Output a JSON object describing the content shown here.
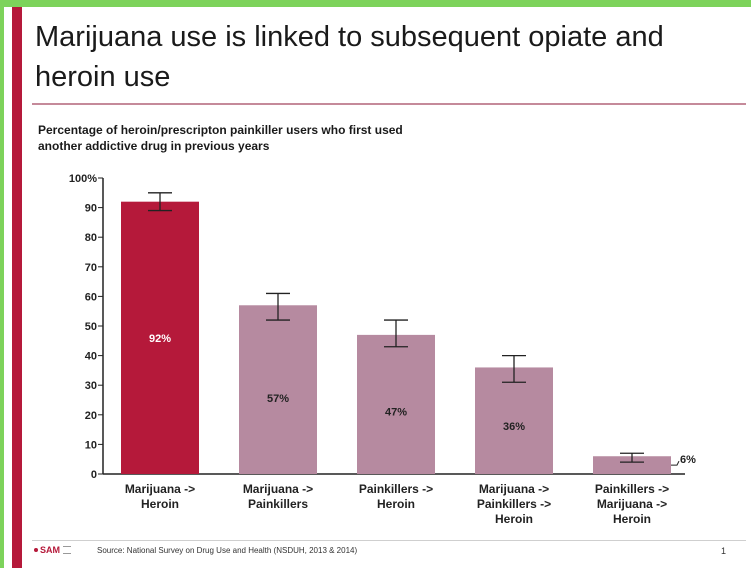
{
  "slide": {
    "title": "Marijuana use is linked to subsequent opiate and heroin use",
    "subtitle": "Percentage of heroin/prescripton painkiller users who first used another addictive drug in previous years",
    "logo_text": "SAM",
    "source": "Source:  National Survey on Drug Use and Health (NSDUH, 2013 & 2014)",
    "page_number": "1"
  },
  "colors": {
    "frame": "#7dd35b",
    "accent": "#b5193a",
    "bar_highlight": "#b5193a",
    "bar_default": "#b68aa0"
  },
  "chart_data": {
    "type": "bar",
    "title": "Percentage of heroin/prescripton painkiller users who first used another addictive drug in previous years",
    "categories": [
      [
        "Marijuana ->",
        "Heroin"
      ],
      [
        "Marijuana ->",
        "Painkillers"
      ],
      [
        "Painkillers ->",
        "Heroin"
      ],
      [
        "Marijuana ->",
        "Painkillers ->",
        "Heroin"
      ],
      [
        "Painkillers ->",
        "Marijuana ->",
        "Heroin"
      ]
    ],
    "values": [
      92,
      57,
      47,
      36,
      6
    ],
    "value_labels": [
      "92%",
      "57%",
      "47%",
      "36%",
      "6%"
    ],
    "error_bars": [
      [
        89,
        95
      ],
      [
        52,
        61
      ],
      [
        43,
        52
      ],
      [
        31,
        40
      ],
      [
        4,
        7
      ]
    ],
    "highlight_index": 0,
    "ylim": [
      0,
      100
    ],
    "yticks": [
      0,
      10,
      20,
      30,
      40,
      50,
      60,
      70,
      80,
      90,
      100
    ],
    "ytick_labels": [
      "0",
      "10",
      "20",
      "30",
      "40",
      "50",
      "60",
      "70",
      "80",
      "90",
      "100%"
    ],
    "xlabel": "",
    "ylabel": "",
    "grid": false
  }
}
